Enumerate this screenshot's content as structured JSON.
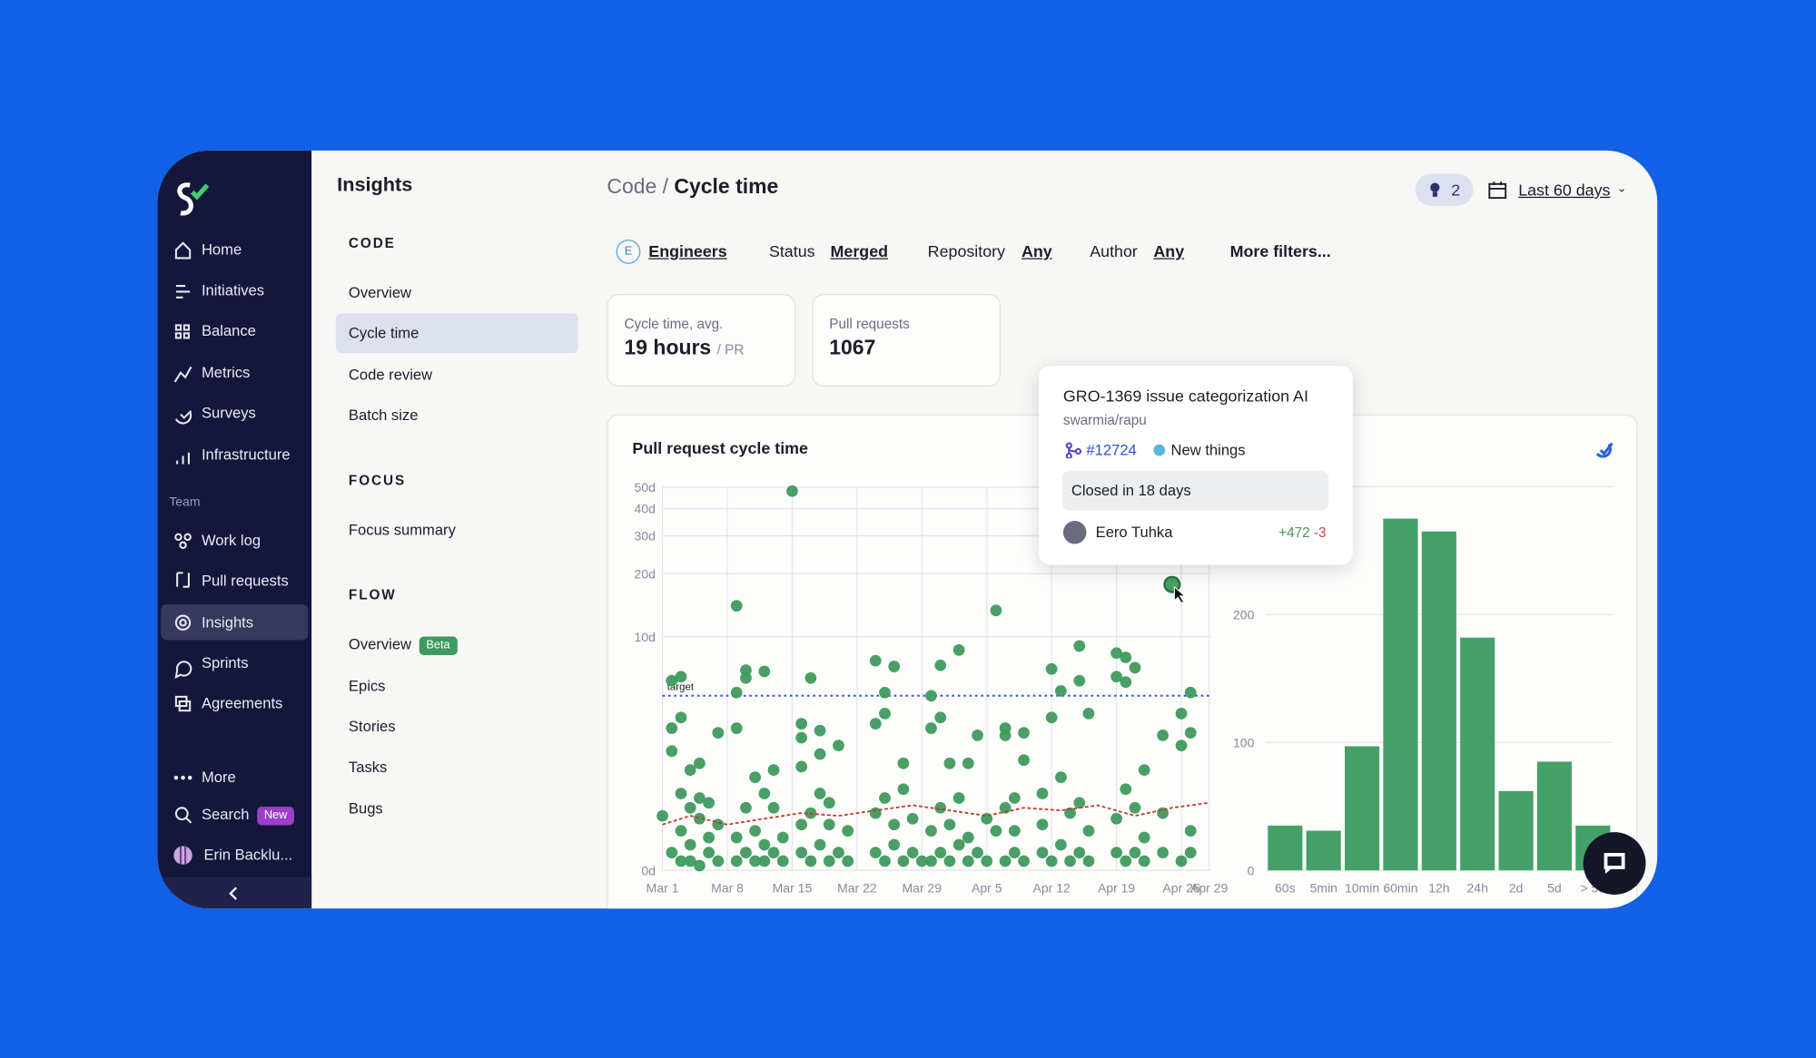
{
  "sidebar": {
    "items": [
      "Home",
      "Initiatives",
      "Balance",
      "Metrics",
      "Surveys",
      "Infrastructure"
    ],
    "team_label": "Team",
    "team_items": [
      "Work log",
      "Pull requests",
      "Insights",
      "Sprints",
      "Agreements"
    ],
    "more": "More",
    "search": "Search",
    "search_badge": "New",
    "user": "Erin Backlu..."
  },
  "subnav": {
    "title": "Insights",
    "sections": [
      {
        "heading": "CODE",
        "items": [
          "Overview",
          "Cycle time",
          "Code review",
          "Batch size"
        ]
      },
      {
        "heading": "FOCUS",
        "items": [
          "Focus summary"
        ]
      },
      {
        "heading": "FLOW",
        "items": [
          "Overview",
          "Epics",
          "Stories",
          "Tasks",
          "Bugs"
        ]
      }
    ],
    "badge": "Beta"
  },
  "header": {
    "breadcrumb": "Code /",
    "title": "Cycle time",
    "notifications": 2,
    "date_range": "Last 60 days"
  },
  "filters": [
    {
      "icon": "E",
      "value": "Engineers"
    },
    {
      "label": "Status",
      "value": "Merged"
    },
    {
      "label": "Repository",
      "value": "Any"
    },
    {
      "label": "Author",
      "value": "Any"
    }
  ],
  "more_filters": "More filters...",
  "stats": [
    {
      "label": "Cycle time, avg.",
      "value": "19 hours",
      "unit": "/ PR"
    },
    {
      "label": "Pull requests",
      "value": 1067
    }
  ],
  "chart_card": {
    "title": "Pull request cycle time"
  },
  "chart_data": [
    {
      "type": "scatter",
      "yscale": "log1p",
      "grid": true,
      "color": "#3f9a5d",
      "xlim": [
        "Mar 1",
        "Apr 29"
      ],
      "xticks": [
        "Mar 1",
        "Mar 8",
        "Mar 15",
        "Mar 22",
        "Mar 29",
        "Apr 5",
        "Apr 12",
        "Apr 19",
        "Apr 26",
        "Apr 29"
      ],
      "ylim": [
        0,
        50
      ],
      "yticks": [
        {
          "value": 0,
          "label": "0d"
        },
        {
          "value": 10,
          "label": "10d"
        },
        {
          "value": 20,
          "label": "20d"
        },
        {
          "value": 30,
          "label": "30d"
        },
        {
          "value": 40,
          "label": "40d"
        },
        {
          "value": 50,
          "label": "50d"
        }
      ],
      "target": {
        "label": "target",
        "value": 5,
        "color": "#2b4fd8"
      },
      "trend": {
        "color": "#c0392b",
        "x": [
          "Mar 1",
          "Mar 4",
          "Mar 8",
          "Mar 12",
          "Mar 16",
          "Mar 20",
          "Mar 24",
          "Mar 28",
          "Apr 1",
          "Apr 5",
          "Apr 9",
          "Apr 13",
          "Apr 17",
          "Apr 21",
          "Apr 25",
          "Apr 29"
        ],
        "values": [
          0.6,
          0.75,
          0.6,
          0.7,
          0.8,
          0.75,
          0.85,
          0.95,
          0.85,
          0.75,
          0.9,
          0.85,
          0.95,
          0.75,
          0.9,
          1.0
        ]
      },
      "highlight_index": 0,
      "x": [
        "Apr 25",
        "Mar 1",
        "Mar 2",
        "Mar 2",
        "Mar 2",
        "Mar 2",
        "Mar 3",
        "Mar 3",
        "Mar 3",
        "Mar 3",
        "Mar 3",
        "Mar 4",
        "Mar 4",
        "Mar 4",
        "Mar 4",
        "Mar 5",
        "Mar 5",
        "Mar 5",
        "Mar 5",
        "Mar 6",
        "Mar 6",
        "Mar 6",
        "Mar 7",
        "Mar 7",
        "Mar 7",
        "Mar 9",
        "Mar 9",
        "Mar 9",
        "Mar 9",
        "Mar 9",
        "Mar 10",
        "Mar 10",
        "Mar 10",
        "Mar 10",
        "Mar 11",
        "Mar 11",
        "Mar 11",
        "Mar 12",
        "Mar 12",
        "Mar 12",
        "Mar 12",
        "Mar 13",
        "Mar 13",
        "Mar 13",
        "Mar 14",
        "Mar 14",
        "Mar 15",
        "Mar 16",
        "Mar 16",
        "Mar 16",
        "Mar 16",
        "Mar 16",
        "Mar 17",
        "Mar 17",
        "Mar 17",
        "Mar 18",
        "Mar 18",
        "Mar 18",
        "Mar 18",
        "Mar 19",
        "Mar 19",
        "Mar 19",
        "Mar 20",
        "Mar 20",
        "Mar 21",
        "Mar 21",
        "Mar 24",
        "Mar 24",
        "Mar 24",
        "Mar 24",
        "Mar 25",
        "Mar 25",
        "Mar 25",
        "Mar 25",
        "Mar 26",
        "Mar 26",
        "Mar 26",
        "Mar 27",
        "Mar 27",
        "Mar 27",
        "Mar 28",
        "Mar 28",
        "Mar 29",
        "Mar 30",
        "Mar 30",
        "Mar 30",
        "Mar 30",
        "Mar 31",
        "Mar 31",
        "Mar 31",
        "Mar 31",
        "Apr 1",
        "Apr 1",
        "Apr 1",
        "Apr 2",
        "Apr 2",
        "Apr 2",
        "Apr 3",
        "Apr 3",
        "Apr 3",
        "Apr 4",
        "Apr 4",
        "Apr 5",
        "Apr 5",
        "Apr 6",
        "Apr 6",
        "Apr 7",
        "Apr 7",
        "Apr 7",
        "Apr 7",
        "Apr 8",
        "Apr 8",
        "Apr 8",
        "Apr 9",
        "Apr 9",
        "Apr 9",
        "Apr 11",
        "Apr 11",
        "Apr 11",
        "Apr 12",
        "Apr 12",
        "Apr 12",
        "Apr 13",
        "Apr 13",
        "Apr 13",
        "Apr 14",
        "Apr 14",
        "Apr 15",
        "Apr 15",
        "Apr 15",
        "Apr 15",
        "Apr 16",
        "Apr 16",
        "Apr 16",
        "Apr 19",
        "Apr 19",
        "Apr 19",
        "Apr 19",
        "Apr 20",
        "Apr 20",
        "Apr 20",
        "Apr 20",
        "Apr 21",
        "Apr 21",
        "Apr 21",
        "Apr 22",
        "Apr 22",
        "Apr 22",
        "Apr 24",
        "Apr 24",
        "Apr 24",
        "Apr 26",
        "Apr 26",
        "Apr 26",
        "Apr 27",
        "Apr 27",
        "Apr 27",
        "Apr 27"
      ],
      "values": [
        17.8,
        0.75,
        0.2,
        2.4,
        3.3,
        6.0,
        0.1,
        0.5,
        1.2,
        3.8,
        6.3,
        0.1,
        0.3,
        0.9,
        1.8,
        0.05,
        0.7,
        2.0,
        1.1,
        0.2,
        0.4,
        1.0,
        0.1,
        0.6,
        3.1,
        0.1,
        0.4,
        3.3,
        14.1,
        5.2,
        0.2,
        0.9,
        6.2,
        6.8,
        0.1,
        0.5,
        1.6,
        0.1,
        0.3,
        1.2,
        6.7,
        0.2,
        0.9,
        1.8,
        0.1,
        0.4,
        48,
        0.2,
        0.6,
        2.9,
        3.5,
        1.9,
        0.1,
        0.8,
        6.2,
        0.3,
        1.2,
        2.3,
        3.2,
        0.1,
        0.6,
        1.0,
        0.2,
        2.6,
        0.1,
        0.5,
        0.2,
        0.8,
        3.5,
        7.6,
        0.1,
        1.1,
        4.0,
        5.2,
        0.3,
        0.6,
        7.1,
        0.1,
        2.0,
        1.3,
        0.2,
        0.7,
        0.1,
        0.1,
        0.5,
        3.3,
        5.0,
        0.2,
        0.9,
        3.8,
        7.2,
        0.1,
        0.6,
        2.0,
        0.3,
        1.1,
        8.6,
        0.1,
        0.4,
        2.0,
        0.2,
        3.0,
        0.1,
        0.7,
        13.4,
        0.5,
        0.1,
        0.9,
        3.3,
        3.0,
        0.2,
        0.5,
        1.1,
        0.1,
        2.1,
        3.1,
        0.2,
        0.6,
        1.2,
        0.1,
        3.8,
        6.9,
        0.3,
        1.6,
        5.3,
        0.1,
        0.8,
        0.2,
        1.0,
        9.0,
        6.0,
        0.1,
        0.5,
        4.0,
        0.2,
        0.7,
        6.3,
        8.3,
        0.1,
        1.3,
        5.9,
        7.9,
        0.2,
        0.9,
        7.0,
        0.1,
        0.4,
        1.8,
        0.2,
        0.8,
        3.0,
        0.1,
        2.6,
        4.0,
        0.2,
        0.5,
        3.1,
        5.2
      ]
    },
    {
      "type": "bar",
      "color": "#45a068",
      "grid": true,
      "categories": [
        "60s",
        "5min",
        "10min",
        "60min",
        "12h",
        "24h",
        "2d",
        "5d",
        "> 5d"
      ],
      "values": [
        35,
        31,
        97,
        275,
        265,
        182,
        62,
        85,
        35
      ],
      "ylim": [
        0,
        300
      ],
      "yticks": [
        0,
        100,
        200
      ]
    }
  ],
  "tooltip": {
    "title": "GRO-1369 issue categorization AI",
    "repo": "swarmia/rapu",
    "pr": "#12724",
    "tag": "New things",
    "status": "Closed in 18 days",
    "author": "Eero Tuhka",
    "additions": "+472",
    "deletions": "-3"
  }
}
